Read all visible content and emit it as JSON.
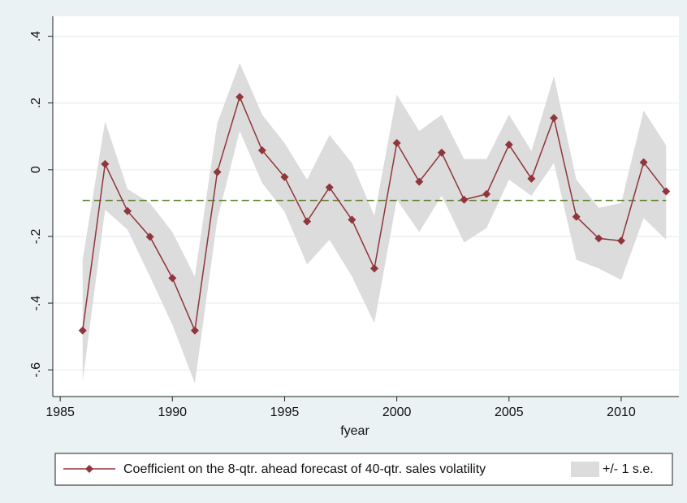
{
  "chart_data": {
    "type": "line",
    "x": [
      1986,
      1987,
      1988,
      1989,
      1990,
      1991,
      1992,
      1993,
      1994,
      1995,
      1996,
      1997,
      1998,
      1999,
      2000,
      2001,
      2002,
      2003,
      2004,
      2005,
      2006,
      2007,
      2008,
      2009,
      2010,
      2011,
      2012
    ],
    "series": [
      {
        "name": "Coefficient on the 8-qtr. ahead forecast of 40-qtr. sales volatility",
        "color": "#90353b",
        "values": [
          -0.482,
          0.017,
          -0.124,
          -0.201,
          -0.325,
          -0.482,
          -0.007,
          0.218,
          0.058,
          -0.022,
          -0.155,
          -0.053,
          -0.15,
          -0.296,
          0.08,
          -0.036,
          0.051,
          -0.09,
          -0.073,
          0.075,
          -0.027,
          0.155,
          -0.141,
          -0.206,
          -0.213,
          0.022,
          -0.065
        ]
      }
    ],
    "band": {
      "name": "+/- 1 s.e.",
      "color": "#dcdcdc",
      "upper": [
        -0.27,
        0.145,
        -0.058,
        -0.1,
        -0.187,
        -0.32,
        0.14,
        0.32,
        0.165,
        0.08,
        -0.03,
        0.104,
        0.02,
        -0.138,
        0.225,
        0.116,
        0.165,
        0.032,
        0.032,
        0.165,
        0.056,
        0.28,
        -0.03,
        -0.114,
        -0.1,
        0.177,
        0.073
      ],
      "lower": [
        -0.635,
        -0.12,
        -0.18,
        -0.32,
        -0.465,
        -0.64,
        -0.15,
        0.116,
        -0.04,
        -0.126,
        -0.284,
        -0.21,
        -0.32,
        -0.46,
        -0.09,
        -0.187,
        -0.078,
        -0.218,
        -0.175,
        -0.03,
        -0.078,
        0.02,
        -0.27,
        -0.296,
        -0.33,
        -0.145,
        -0.21
      ]
    },
    "reference_line": {
      "value": -0.092,
      "color": "#5a7a2a"
    },
    "x_label": "fyear",
    "xlim": [
      1984.67,
      2012.57
    ],
    "xticks": [
      1985,
      1990,
      1995,
      2000,
      2005,
      2010
    ],
    "ylim": [
      -0.68,
      0.46
    ],
    "yticks": [
      {
        "value": 0.4,
        "label": ".4"
      },
      {
        "value": 0.2,
        "label": ".2"
      },
      0,
      {
        "value": -0.2,
        "label": "-.2"
      },
      {
        "value": -0.4,
        "label": "-.4"
      },
      {
        "value": -0.6,
        "label": "-.6"
      }
    ],
    "grid": true
  }
}
